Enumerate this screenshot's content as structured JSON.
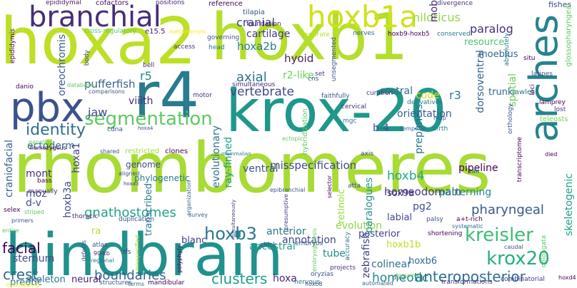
{
  "words": [
    {
      "text": "rhombomeres",
      "color": "#a8db34"
    },
    {
      "text": "hindbrain",
      "color": "#21918c"
    },
    {
      "text": "hoxa2",
      "color": "#bddf26"
    },
    {
      "text": "hoxb1",
      "color": "#b5de2b"
    },
    {
      "text": "krox-20",
      "color": "#1f978b"
    },
    {
      "text": "r4",
      "color": "#287c8e"
    },
    {
      "text": "branchial",
      "color": "#472d7b"
    },
    {
      "text": "hoxb1a",
      "color": "#d0e11c"
    },
    {
      "text": "arches",
      "color": "#25838e"
    },
    {
      "text": "pbx",
      "color": "#3b528b"
    },
    {
      "text": "segmentation",
      "color": "#5ec962"
    },
    {
      "text": "hoxb3",
      "color": "#2a788e"
    },
    {
      "text": "kreisler",
      "color": "#3dbc74"
    },
    {
      "text": "krox20",
      "color": "#27ad81"
    },
    {
      "text": "identity",
      "color": "#2f6c8e"
    },
    {
      "text": "gnathostomes",
      "color": "#20a486"
    },
    {
      "text": "boundaries",
      "color": "#31688e"
    },
    {
      "text": "clusters",
      "color": "#1fa088"
    },
    {
      "text": "anteroposterior",
      "color": "#2d708e"
    },
    {
      "text": "pharyngeal",
      "color": "#38598c"
    },
    {
      "text": "vertebrate",
      "color": "#404688"
    },
    {
      "text": "misspecification",
      "color": "#3e4a89"
    },
    {
      "text": "homeodomain",
      "color": "#453781"
    },
    {
      "text": "homeotic",
      "color": "#23898e"
    },
    {
      "text": "crest",
      "color": "#31688e"
    },
    {
      "text": "facial",
      "color": "#440154"
    },
    {
      "text": "axial",
      "color": "#2c738e"
    },
    {
      "text": "pufferfish",
      "color": "#34618d"
    },
    {
      "text": "hoxa2b",
      "color": "#287d8e"
    },
    {
      "text": "paralog",
      "color": "#46307e"
    },
    {
      "text": "niloticus",
      "color": "#8fd744"
    },
    {
      "text": "cranial",
      "color": "#3f4788"
    },
    {
      "text": "cartilage",
      "color": "#443a83"
    },
    {
      "text": "hyoid",
      "color": "#481b6d"
    },
    {
      "text": "r2-like",
      "color": "#6ece58"
    },
    {
      "text": "r5",
      "color": "#26828e"
    },
    {
      "text": "r3",
      "color": "#277f8e"
    },
    {
      "text": "code",
      "color": "#d8e219"
    },
    {
      "text": "orientation",
      "color": "#355f8d"
    },
    {
      "text": "rostral",
      "color": "#2e6e8e"
    },
    {
      "text": "b-4",
      "color": "#3b528b"
    },
    {
      "text": "ventral",
      "color": "#3b528b"
    },
    {
      "text": "hoxb4",
      "color": "#22a884"
    },
    {
      "text": "pipeline",
      "color": "#440154"
    },
    {
      "text": "jaw",
      "color": "#3f4889"
    },
    {
      "text": "viiith",
      "color": "#482878"
    },
    {
      "text": "ectoderm",
      "color": "#2f6b8e"
    },
    {
      "text": "craniofacial",
      "color": "#375b8d"
    },
    {
      "text": "mont",
      "color": "#46327e"
    },
    {
      "text": "moz",
      "color": "#414487"
    },
    {
      "text": "hoxb3a",
      "color": "#3e4c8a"
    },
    {
      "text": "d-v",
      "color": "#3b528b"
    },
    {
      "text": "sternum",
      "color": "#3e4c8a"
    },
    {
      "text": "preotic",
      "color": "#2c728e"
    },
    {
      "text": "skeleton",
      "color": "#2b758e"
    },
    {
      "text": "neural",
      "color": "#482576"
    },
    {
      "text": "hoxa",
      "color": "#472a7a"
    },
    {
      "text": "colinear",
      "color": "#2c728e"
    },
    {
      "text": "tube",
      "color": "#23888e"
    },
    {
      "text": "ancestral",
      "color": "#1fa088"
    },
    {
      "text": "annotation",
      "color": "#404588"
    },
    {
      "text": "anterior",
      "color": "#2a788e"
    },
    {
      "text": "evolution",
      "color": "#8bd646"
    },
    {
      "text": "posterior",
      "color": "#424086"
    },
    {
      "text": "labial",
      "color": "#3e4989"
    },
    {
      "text": "pg2",
      "color": "#3c4f8a"
    },
    {
      "text": "patterning",
      "color": "#25858e"
    },
    {
      "text": "sox9a",
      "color": "#453581"
    },
    {
      "text": "zebrafish",
      "color": "#424086"
    },
    {
      "text": "hoxb1b",
      "color": "#bddf26"
    },
    {
      "text": "hoxb6",
      "color": "#31688e"
    },
    {
      "text": "prep/meis",
      "color": "#2d718e"
    },
    {
      "text": "dorsoventral",
      "color": "#32658e"
    },
    {
      "text": "spatial",
      "color": "#6ccd5a"
    },
    {
      "text": "skeletogenic",
      "color": "#1f9e89"
    },
    {
      "text": "trunk",
      "color": "#31688e"
    },
    {
      "text": "resource",
      "color": "#4ec36b"
    },
    {
      "text": "moebius",
      "color": "#31678e"
    },
    {
      "text": "genome",
      "color": "#3f4889"
    },
    {
      "text": "phylogenetic",
      "color": "#29798e"
    },
    {
      "text": "evolutionary",
      "color": "#2b748e"
    },
    {
      "text": "ray-finned",
      "color": "#1fa187"
    },
    {
      "text": "oreochromis",
      "color": "#365d8d"
    },
    {
      "text": "hoxa1",
      "color": "#424186"
    },
    {
      "text": "blanc",
      "color": "#433e85"
    },
    {
      "text": "ra",
      "color": "#b5de2b"
    },
    {
      "text": "transcribed",
      "color": "#2a788e"
    },
    {
      "text": "retinoic",
      "color": "#9bd93c"
    },
    {
      "text": "paralogues",
      "color": "#20928c"
    },
    {
      "text": "fishes",
      "color": "#3f4788"
    },
    {
      "text": "glossopharyngeal",
      "color": "#5cc863"
    },
    {
      "text": "mob",
      "color": "#482677"
    },
    {
      "text": "cofactors",
      "color": "#470d60"
    },
    {
      "text": "epididymal",
      "color": "#481a6c"
    },
    {
      "text": "tilapia",
      "color": "#3b528b"
    },
    {
      "text": "reference",
      "color": "#440154"
    },
    {
      "text": "divergence",
      "color": "#453781"
    },
    {
      "text": "positions",
      "color": "#482878"
    },
    {
      "text": "cross-regulatory",
      "color": "#5ec962"
    },
    {
      "text": "e15.5",
      "color": "#481c6e"
    },
    {
      "text": "metamerism",
      "color": "#fde725"
    },
    {
      "text": "governing",
      "color": "#3b528b"
    },
    {
      "text": "separate",
      "color": "#b8de29"
    },
    {
      "text": "nerves",
      "color": "#31688e"
    },
    {
      "text": "hoxb9-hoxb5",
      "color": "#440154"
    },
    {
      "text": "conserved",
      "color": "#2a788e"
    },
    {
      "text": "foundation",
      "color": "#481a6c"
    },
    {
      "text": "head",
      "color": "#2d708e"
    },
    {
      "text": "access",
      "color": "#453781"
    },
    {
      "text": "bell",
      "color": "#482878"
    },
    {
      "text": "body",
      "color": "#3e4a89"
    },
    {
      "text": "epididymis",
      "color": "#440154"
    },
    {
      "text": "danio",
      "color": "#46085c"
    },
    {
      "text": "database",
      "color": "#5ec962"
    },
    {
      "text": "comparisons",
      "color": "#3b528b"
    },
    {
      "text": "simultaneous",
      "color": "#482878"
    },
    {
      "text": "cns",
      "color": "#3b528b"
    },
    {
      "text": "set",
      "color": "#453781"
    },
    {
      "text": "unsegmented",
      "color": "#3b528b"
    },
    {
      "text": "faithfully",
      "color": "#3b528b"
    },
    {
      "text": "absolutely",
      "color": "#2a788e"
    },
    {
      "text": "situ",
      "color": "#440154"
    },
    {
      "text": "latipes",
      "color": "#3b528b"
    },
    {
      "text": "jawless",
      "color": "#2a788e"
    },
    {
      "text": "lamprey",
      "color": "#440154"
    },
    {
      "text": "lost",
      "color": "#453781"
    },
    {
      "text": "teleosts",
      "color": "#7ad151"
    },
    {
      "text": "curation",
      "color": "#453781"
    },
    {
      "text": "cervical",
      "color": "#482878"
    },
    {
      "text": "derivatives",
      "color": "#2a788e"
    },
    {
      "text": "mgc",
      "color": "#2a788e"
    },
    {
      "text": "map",
      "color": "#3b528b"
    },
    {
      "text": "orthology",
      "color": "#3b528b"
    },
    {
      "text": "loci",
      "color": "#440154"
    },
    {
      "text": "temporal",
      "color": "#31688e"
    },
    {
      "text": "birth",
      "color": "#2a788e"
    },
    {
      "text": "ectopic",
      "color": "#5ec962"
    },
    {
      "text": "hybridization",
      "color": "#5ec962"
    },
    {
      "text": "cdna",
      "color": "#3b528b"
    },
    {
      "text": "hoxa4",
      "color": "#3b528b"
    },
    {
      "text": "motor",
      "color": "#453781"
    },
    {
      "text": "ganglia",
      "color": "#5ec962"
    },
    {
      "text": "homozygous",
      "color": "#440154"
    },
    {
      "text": "restricted",
      "color": "#a0da39"
    },
    {
      "text": "shared",
      "color": "#3b528b"
    },
    {
      "text": "clones",
      "color": "#440154"
    },
    {
      "text": "mammalian",
      "color": "#2a788e"
    },
    {
      "text": "axis",
      "color": "#3b528b"
    },
    {
      "text": "transcriptome",
      "color": "#440154"
    },
    {
      "text": "died",
      "color": "#440154"
    },
    {
      "text": "caudal",
      "color": "#3b528b"
    },
    {
      "text": "oblongata",
      "color": "#5ec962"
    },
    {
      "text": "tail",
      "color": "#31688e"
    },
    {
      "text": "bass",
      "color": "#440154"
    },
    {
      "text": "aligned",
      "color": "#3b528b"
    },
    {
      "text": "hoxa3",
      "color": "#453781"
    },
    {
      "text": "manually",
      "color": "#482878"
    },
    {
      "text": "organization",
      "color": "#31688e"
    },
    {
      "text": "epibranchial",
      "color": "#3b528b"
    },
    {
      "text": "selector",
      "color": "#440154"
    },
    {
      "text": "atta",
      "color": "#3b528b"
    },
    {
      "text": "presumptive",
      "color": "#453781"
    },
    {
      "text": "selex",
      "color": "#440154"
    },
    {
      "text": "striped",
      "color": "#5ec962"
    },
    {
      "text": "primers",
      "color": "#3b528b"
    },
    {
      "text": "entire",
      "color": "#5ec962"
    },
    {
      "text": "thoracic",
      "color": "#482878"
    },
    {
      "text": "duplication",
      "color": "#3b528b"
    },
    {
      "text": "survey",
      "color": "#31688e"
    },
    {
      "text": "simultaneously",
      "color": "#453781"
    },
    {
      "text": "palsy",
      "color": "#3b528b"
    },
    {
      "text": "a+t-rich",
      "color": "#440154"
    },
    {
      "text": "systematic",
      "color": "#31688e"
    },
    {
      "text": "shortening",
      "color": "#440154"
    },
    {
      "text": "atlas",
      "color": "#3b528b"
    },
    {
      "text": "90-kb",
      "color": "#482878"
    },
    {
      "text": "regional",
      "color": "#2a788e"
    },
    {
      "text": "defects",
      "color": "#3b528b"
    },
    {
      "text": "tfs",
      "color": "#453781"
    },
    {
      "text": "chick",
      "color": "#3b528b"
    },
    {
      "text": "embryos",
      "color": "#3b528b"
    },
    {
      "text": "accuracy",
      "color": "#2a788e"
    },
    {
      "text": "embryogenesis",
      "color": "#5ec962"
    },
    {
      "text": "nervous",
      "color": "#2a788e"
    },
    {
      "text": "projects",
      "color": "#453781"
    },
    {
      "text": "oryzias",
      "color": "#3b528b"
    },
    {
      "text": "dlx2",
      "color": "#31688e"
    },
    {
      "text": "overlapping",
      "color": "#fde725"
    },
    {
      "text": "structures",
      "color": "#3b528b"
    },
    {
      "text": "terms",
      "color": "#31688e"
    },
    {
      "text": "mandibular",
      "color": "#440154"
    },
    {
      "text": "misspecified",
      "color": "#a0da39"
    },
    {
      "text": "polyphyly",
      "color": "#440154"
    },
    {
      "text": "hoxb8",
      "color": "#3b528b"
    },
    {
      "text": "automated",
      "color": "#31688e"
    },
    {
      "text": "domains",
      "color": "#5ec962"
    },
    {
      "text": "transformations",
      "color": "#453781"
    },
    {
      "text": "combinatorial",
      "color": "#453781"
    },
    {
      "text": "hoxd4",
      "color": "#440154"
    }
  ]
}
